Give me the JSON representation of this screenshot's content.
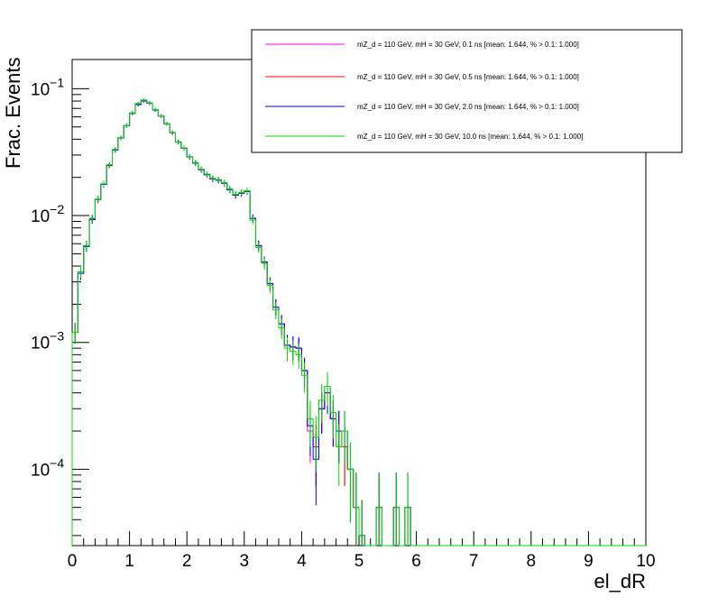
{
  "chart_data": {
    "type": "line",
    "title": "",
    "xlabel": "el_dR",
    "ylabel": "Frac. Events",
    "x_range": [
      0,
      10
    ],
    "y_range": [
      2.5e-05,
      0.17
    ],
    "y_scale": "log",
    "x_ticks": [
      0,
      1,
      2,
      3,
      4,
      5,
      6,
      7,
      8,
      9,
      10
    ],
    "x_tick_labels": [
      "0",
      "1",
      "2",
      "3",
      "4",
      "5",
      "6",
      "7",
      "8",
      "9",
      "10"
    ],
    "y_ticks": [
      0.0001,
      0.001,
      0.01,
      0.1
    ],
    "y_tick_labels": [
      {
        "base": "10",
        "exp": "−4"
      },
      {
        "base": "10",
        "exp": "−3"
      },
      {
        "base": "10",
        "exp": "−2"
      },
      {
        "base": "10",
        "exp": "−1"
      }
    ],
    "legend_position": "top-right",
    "bin_width": 0.1,
    "x": [
      0.05,
      0.15,
      0.25,
      0.35,
      0.45,
      0.55,
      0.65,
      0.75,
      0.85,
      0.95,
      1.05,
      1.15,
      1.25,
      1.35,
      1.45,
      1.55,
      1.65,
      1.75,
      1.85,
      1.95,
      2.05,
      2.15,
      2.25,
      2.35,
      2.45,
      2.55,
      2.65,
      2.75,
      2.85,
      2.95,
      3.05,
      3.15,
      3.25,
      3.35,
      3.45,
      3.55,
      3.65,
      3.75,
      3.85,
      3.95,
      4.05,
      4.15,
      4.25,
      4.35,
      4.45,
      4.55,
      4.65,
      4.75,
      4.85,
      4.95,
      5.05,
      5.15,
      5.25,
      5.35,
      5.45,
      5.55,
      5.65,
      5.75,
      5.85,
      5.95
    ],
    "series": [
      {
        "name": "mZ_d = 110 GeV, mH = 30 GeV, 0.1 ns [mean: 1.644, % > 0.1: 1.000]",
        "color": "#ff00ff",
        "values": [
          0.0012,
          0.0035,
          0.0058,
          0.0095,
          0.0135,
          0.0178,
          0.025,
          0.033,
          0.041,
          0.051,
          0.064,
          0.076,
          0.081,
          0.077,
          0.068,
          0.061,
          0.053,
          0.045,
          0.038,
          0.034,
          0.029,
          0.026,
          0.023,
          0.021,
          0.0195,
          0.019,
          0.018,
          0.016,
          0.0145,
          0.015,
          0.0155,
          0.0095,
          0.0058,
          0.0043,
          0.0029,
          0.0019,
          0.0014,
          0.00095,
          0.00092,
          0.0009,
          0.0006,
          0.0002,
          0.00015,
          0.0003,
          0.00045,
          0.00025,
          0.0002,
          0.00015,
          0.0001,
          5e-05,
          3e-05,
          0.0,
          0.0,
          5e-05,
          0.0,
          0.0,
          5e-05,
          0.0,
          5e-05,
          0.0
        ]
      },
      {
        "name": "mZ_d = 110 GeV, mH = 30 GeV, 0.5 ns [mean: 1.644, % > 0.1: 1.000]",
        "color": "#ff0000",
        "values": [
          0.0012,
          0.0036,
          0.0058,
          0.0094,
          0.0134,
          0.0177,
          0.0248,
          0.033,
          0.041,
          0.051,
          0.064,
          0.076,
          0.081,
          0.077,
          0.068,
          0.061,
          0.053,
          0.045,
          0.038,
          0.034,
          0.029,
          0.026,
          0.023,
          0.021,
          0.0195,
          0.019,
          0.018,
          0.016,
          0.0145,
          0.015,
          0.0155,
          0.0095,
          0.0058,
          0.0043,
          0.0029,
          0.0019,
          0.0014,
          0.00095,
          0.00092,
          0.0009,
          0.0006,
          0.00022,
          0.00015,
          0.0003,
          0.0004,
          0.00025,
          0.0002,
          0.00015,
          0.0001,
          5e-05,
          3e-05,
          0.0,
          0.0,
          5e-05,
          0.0,
          0.0,
          5e-05,
          0.0,
          5e-05,
          0.0
        ]
      },
      {
        "name": "mZ_d = 110 GeV, mH = 30 GeV, 2.0 ns [mean: 1.644, % > 0.1: 1.000]",
        "color": "#0000ff",
        "values": [
          0.0012,
          0.0035,
          0.0057,
          0.0093,
          0.0134,
          0.0176,
          0.025,
          0.0328,
          0.041,
          0.051,
          0.064,
          0.075,
          0.08,
          0.077,
          0.068,
          0.061,
          0.053,
          0.045,
          0.038,
          0.034,
          0.029,
          0.026,
          0.023,
          0.021,
          0.0195,
          0.019,
          0.018,
          0.016,
          0.0145,
          0.015,
          0.0155,
          0.0095,
          0.0058,
          0.0043,
          0.0029,
          0.0019,
          0.0014,
          0.00095,
          0.00092,
          0.0009,
          0.0006,
          0.00022,
          0.00012,
          0.0003,
          0.0004,
          0.00025,
          0.0002,
          0.0002,
          0.0001,
          5e-05,
          3e-05,
          0.0,
          0.0,
          5e-05,
          0.0,
          0.0,
          5e-05,
          0.0,
          5e-05,
          0.0
        ]
      },
      {
        "name": "mZ_d = 110 GeV, mH = 30 GeV, 10.0 ns [mean: 1.644, % > 0.1: 1.000]",
        "color": "#00dd00",
        "values": [
          0.0012,
          0.0036,
          0.0058,
          0.0095,
          0.0135,
          0.0178,
          0.0252,
          0.0332,
          0.0412,
          0.0512,
          0.0645,
          0.0765,
          0.0815,
          0.0775,
          0.0685,
          0.0612,
          0.0532,
          0.0452,
          0.0382,
          0.0342,
          0.0292,
          0.0262,
          0.0232,
          0.0212,
          0.0197,
          0.0192,
          0.0182,
          0.0162,
          0.0147,
          0.0152,
          0.0157,
          0.0092,
          0.0056,
          0.0042,
          0.0028,
          0.0018,
          0.0013,
          0.0009,
          0.00085,
          0.0008,
          0.00055,
          0.00025,
          0.00018,
          0.00035,
          0.00045,
          0.00028,
          0.00015,
          0.0002,
          0.0001,
          5e-05,
          3e-05,
          0.0,
          0.0,
          5e-05,
          0.0,
          0.0,
          5e-05,
          0.0,
          5e-05,
          0.0
        ]
      }
    ]
  }
}
